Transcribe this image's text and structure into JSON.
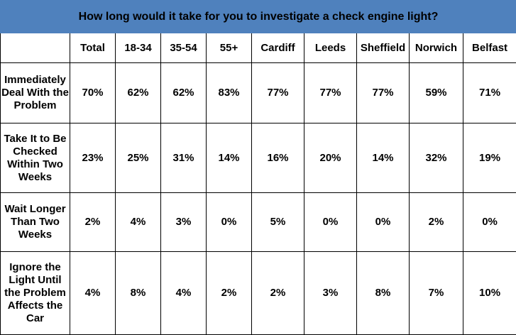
{
  "chart_data": {
    "type": "table",
    "title": "How long would it take for you to investigate a check engine light?",
    "columns": [
      "Total",
      "18-34",
      "35-54",
      "55+",
      "Cardiff",
      "Leeds",
      "Sheffield",
      "Norwich",
      "Belfast"
    ],
    "rows": [
      {
        "label": "Immediately Deal With the Problem",
        "values": [
          "70%",
          "62%",
          "62%",
          "83%",
          "77%",
          "77%",
          "77%",
          "59%",
          "71%"
        ]
      },
      {
        "label": "Take It to Be Checked Within Two Weeks",
        "values": [
          "23%",
          "25%",
          "31%",
          "14%",
          "16%",
          "20%",
          "14%",
          "32%",
          "19%"
        ]
      },
      {
        "label": "Wait Longer Than Two Weeks",
        "values": [
          "2%",
          "4%",
          "3%",
          "0%",
          "5%",
          "0%",
          "0%",
          "2%",
          "0%"
        ]
      },
      {
        "label": "Ignore the Light Until the Problem Affects the Car",
        "values": [
          "4%",
          "8%",
          "4%",
          "2%",
          "2%",
          "3%",
          "8%",
          "7%",
          "10%"
        ]
      }
    ]
  },
  "colors": {
    "title_background": "#4f81bd",
    "border": "#000000"
  }
}
